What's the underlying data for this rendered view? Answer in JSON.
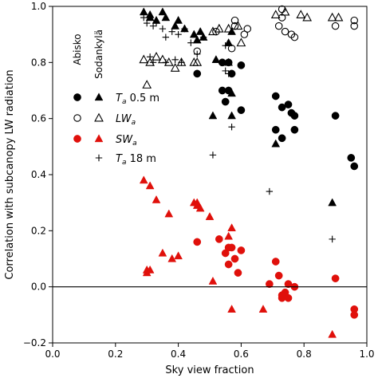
{
  "chart_data": {
    "type": "scatter",
    "xlabel": "Sky view fraction",
    "ylabel": "Correlation with subcanopy LW radiation",
    "xlim": [
      0.0,
      1.0
    ],
    "ylim": [
      -0.2,
      1.0
    ],
    "xticks": [
      "0.0",
      "0.2",
      "0.4",
      "0.6",
      "0.8",
      "1.0"
    ],
    "yticks": [
      "−0.2",
      "0.0",
      "0.2",
      "0.4",
      "0.6",
      "0.8",
      "1.0"
    ],
    "reference_line_y": 0.0,
    "grid": false,
    "legend": {
      "placement": "left-middle",
      "column_headers": [
        "Abisko",
        "Sodankylä"
      ],
      "rows": [
        {
          "label_base": "T",
          "label_sub": "a",
          "label_suffix": " 0.5 m"
        },
        {
          "label_base": "LW",
          "label_sub": "a",
          "label_suffix": ""
        },
        {
          "label_base": "SW",
          "label_sub": "a",
          "label_suffix": ""
        },
        {
          "label_base": "T",
          "label_sub": "a",
          "label_suffix": " 18 m"
        }
      ]
    },
    "colors": {
      "black": "#000000",
      "red": "#e0100b"
    },
    "series": [
      {
        "name": "T_a 0.5 m (Abisko)",
        "marker": "circle-filled",
        "color": "#000000",
        "points": [
          [
            0.46,
            0.76
          ],
          [
            0.54,
            0.8
          ],
          [
            0.56,
            0.8
          ],
          [
            0.57,
            0.76
          ],
          [
            0.56,
            0.7
          ],
          [
            0.6,
            0.79
          ],
          [
            0.54,
            0.7
          ],
          [
            0.55,
            0.66
          ],
          [
            0.6,
            0.63
          ],
          [
            0.71,
            0.68
          ],
          [
            0.73,
            0.64
          ],
          [
            0.75,
            0.65
          ],
          [
            0.76,
            0.62
          ],
          [
            0.77,
            0.61
          ],
          [
            0.73,
            0.53
          ],
          [
            0.71,
            0.56
          ],
          [
            0.77,
            0.56
          ],
          [
            0.9,
            0.61
          ],
          [
            0.95,
            0.46
          ],
          [
            0.96,
            0.43
          ]
        ]
      },
      {
        "name": "T_a 0.5 m (Sodankylä)",
        "marker": "triangle-filled",
        "color": "#000000",
        "points": [
          [
            0.29,
            0.98
          ],
          [
            0.31,
            0.97
          ],
          [
            0.31,
            0.96
          ],
          [
            0.33,
            0.95
          ],
          [
            0.35,
            0.98
          ],
          [
            0.36,
            0.96
          ],
          [
            0.39,
            0.93
          ],
          [
            0.4,
            0.95
          ],
          [
            0.42,
            0.92
          ],
          [
            0.46,
            0.88
          ],
          [
            0.45,
            0.9
          ],
          [
            0.47,
            0.91
          ],
          [
            0.48,
            0.89
          ],
          [
            0.56,
            0.87
          ],
          [
            0.57,
            0.91
          ],
          [
            0.52,
            0.81
          ],
          [
            0.56,
            0.8
          ],
          [
            0.57,
            0.69
          ],
          [
            0.51,
            0.61
          ],
          [
            0.57,
            0.61
          ],
          [
            0.71,
            0.51
          ],
          [
            0.89,
            0.3
          ]
        ]
      },
      {
        "name": "LW_a (Abisko)",
        "marker": "circle-open",
        "color": "#000000",
        "points": [
          [
            0.52,
            0.91
          ],
          [
            0.58,
            0.93
          ],
          [
            0.58,
            0.95
          ],
          [
            0.62,
            0.92
          ],
          [
            0.61,
            0.9
          ],
          [
            0.46,
            0.84
          ],
          [
            0.57,
            0.85
          ],
          [
            0.73,
            0.96
          ],
          [
            0.73,
            0.99
          ],
          [
            0.72,
            0.93
          ],
          [
            0.74,
            0.91
          ],
          [
            0.76,
            0.9
          ],
          [
            0.77,
            0.89
          ],
          [
            0.9,
            0.93
          ],
          [
            0.96,
            0.95
          ],
          [
            0.96,
            0.93
          ]
        ]
      },
      {
        "name": "LW_a (Sodankylä)",
        "marker": "triangle-open",
        "color": "#000000",
        "points": [
          [
            0.29,
            0.81
          ],
          [
            0.31,
            0.8
          ],
          [
            0.33,
            0.82
          ],
          [
            0.35,
            0.81
          ],
          [
            0.37,
            0.8
          ],
          [
            0.39,
            0.78
          ],
          [
            0.41,
            0.8
          ],
          [
            0.45,
            0.8
          ],
          [
            0.46,
            0.8
          ],
          [
            0.3,
            0.72
          ],
          [
            0.51,
            0.91
          ],
          [
            0.53,
            0.92
          ],
          [
            0.56,
            0.92
          ],
          [
            0.59,
            0.93
          ],
          [
            0.6,
            0.87
          ],
          [
            0.71,
            0.97
          ],
          [
            0.74,
            0.98
          ],
          [
            0.79,
            0.97
          ],
          [
            0.81,
            0.96
          ],
          [
            0.89,
            0.96
          ],
          [
            0.91,
            0.96
          ]
        ]
      },
      {
        "name": "SW_a (Abisko)",
        "marker": "circle-filled",
        "color": "#e0100b",
        "points": [
          [
            0.46,
            0.16
          ],
          [
            0.53,
            0.17
          ],
          [
            0.55,
            0.12
          ],
          [
            0.56,
            0.08
          ],
          [
            0.57,
            0.14
          ],
          [
            0.58,
            0.1
          ],
          [
            0.59,
            0.05
          ],
          [
            0.6,
            0.13
          ],
          [
            0.56,
            0.14
          ],
          [
            0.69,
            0.01
          ],
          [
            0.71,
            0.09
          ],
          [
            0.72,
            0.04
          ],
          [
            0.73,
            -0.04
          ],
          [
            0.74,
            -0.02
          ],
          [
            0.75,
            0.01
          ],
          [
            0.73,
            -0.03
          ],
          [
            0.75,
            -0.04
          ],
          [
            0.77,
            0.0
          ],
          [
            0.9,
            0.03
          ],
          [
            0.96,
            -0.08
          ],
          [
            0.96,
            -0.1
          ]
        ]
      },
      {
        "name": "SW_a (Sodankylä)",
        "marker": "triangle-filled",
        "color": "#e0100b",
        "points": [
          [
            0.29,
            0.38
          ],
          [
            0.31,
            0.36
          ],
          [
            0.33,
            0.31
          ],
          [
            0.37,
            0.26
          ],
          [
            0.45,
            0.3
          ],
          [
            0.46,
            0.3
          ],
          [
            0.46,
            0.29
          ],
          [
            0.47,
            0.28
          ],
          [
            0.5,
            0.25
          ],
          [
            0.57,
            0.21
          ],
          [
            0.56,
            0.18
          ],
          [
            0.35,
            0.12
          ],
          [
            0.38,
            0.1
          ],
          [
            0.4,
            0.11
          ],
          [
            0.3,
            0.06
          ],
          [
            0.3,
            0.05
          ],
          [
            0.31,
            0.06
          ],
          [
            0.51,
            0.02
          ],
          [
            0.57,
            -0.08
          ],
          [
            0.67,
            -0.08
          ],
          [
            0.89,
            -0.17
          ]
        ]
      },
      {
        "name": "T_a 18 m (Sodankylä)",
        "marker": "plus",
        "color": "#000000",
        "points": [
          [
            0.29,
            0.96
          ],
          [
            0.3,
            0.94
          ],
          [
            0.32,
            0.93
          ],
          [
            0.33,
            0.94
          ],
          [
            0.35,
            0.92
          ],
          [
            0.36,
            0.89
          ],
          [
            0.38,
            0.91
          ],
          [
            0.4,
            0.9
          ],
          [
            0.42,
            0.92
          ],
          [
            0.44,
            0.87
          ],
          [
            0.46,
            0.83
          ],
          [
            0.48,
            0.89
          ],
          [
            0.31,
            0.82
          ],
          [
            0.32,
            0.8
          ],
          [
            0.36,
            0.8
          ],
          [
            0.39,
            0.81
          ],
          [
            0.41,
            0.8
          ],
          [
            0.56,
            0.8
          ],
          [
            0.55,
            0.77
          ],
          [
            0.56,
            0.76
          ],
          [
            0.55,
            0.86
          ],
          [
            0.57,
            0.57
          ],
          [
            0.51,
            0.47
          ],
          [
            0.69,
            0.34
          ],
          [
            0.89,
            0.17
          ]
        ]
      }
    ]
  }
}
